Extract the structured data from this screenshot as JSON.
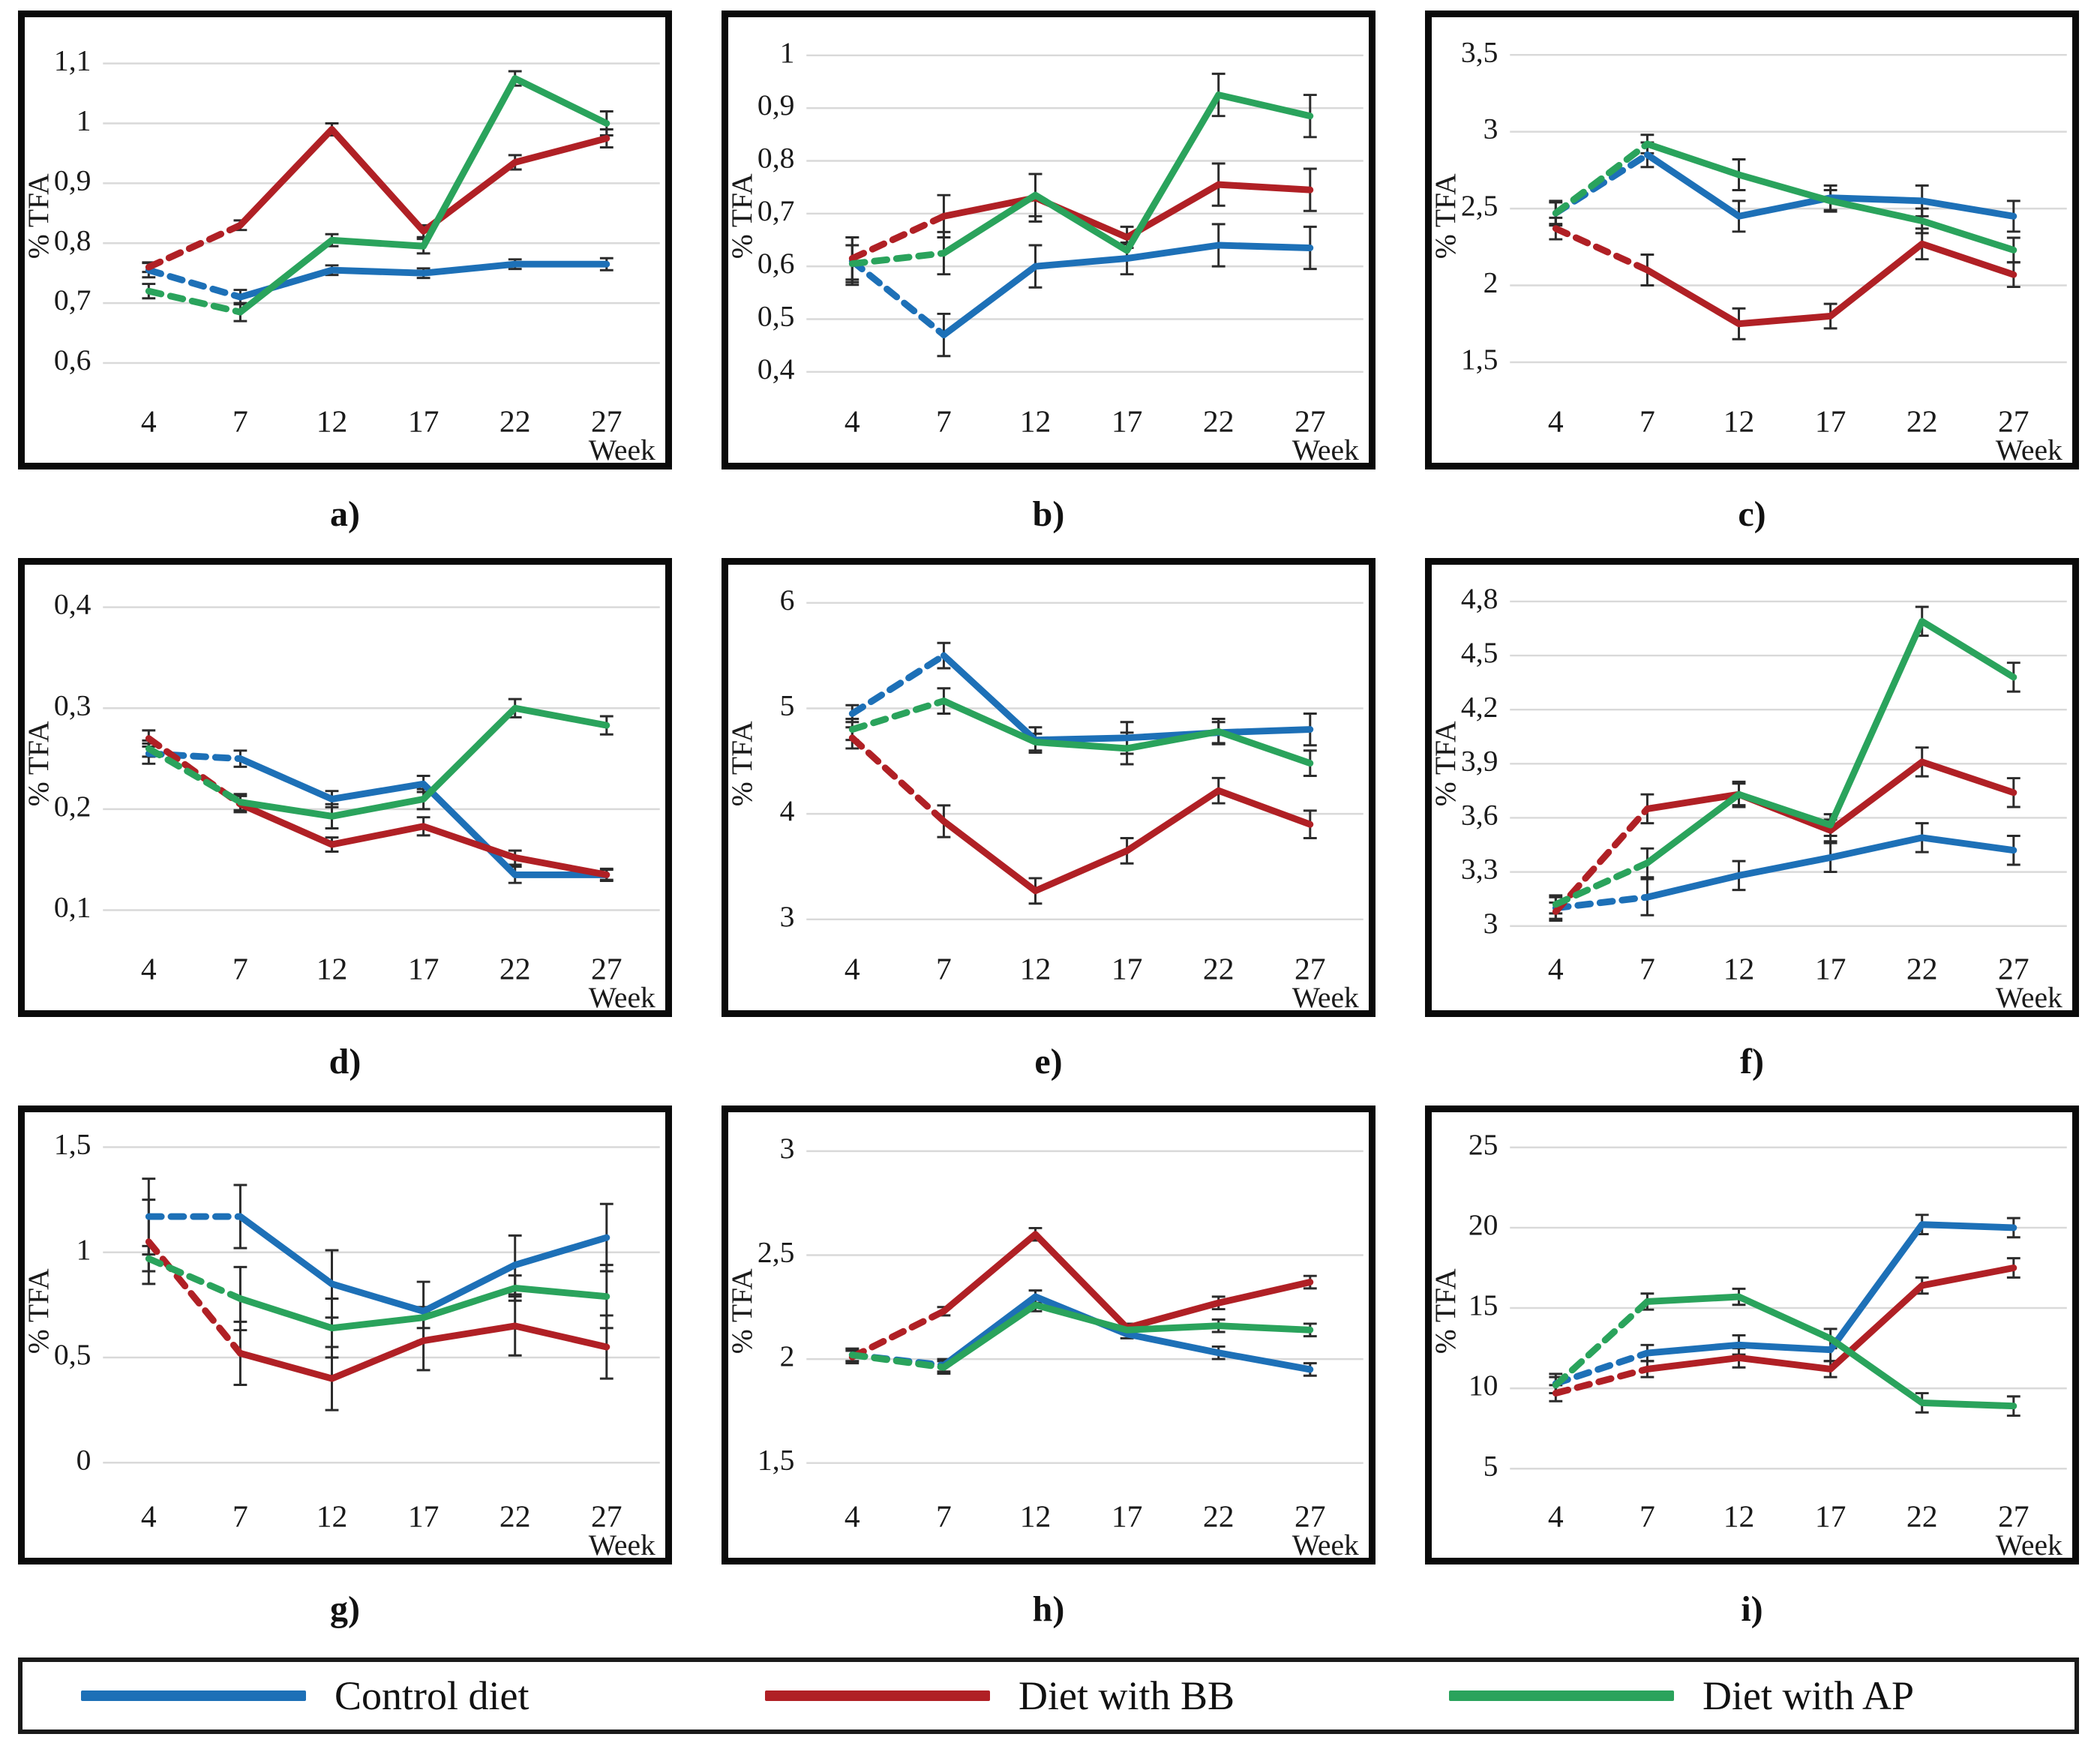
{
  "legend": {
    "items": [
      {
        "name": "control-diet",
        "label": "Control diet",
        "color": "#1d70b7"
      },
      {
        "name": "diet-with-bb",
        "label": "Diet with BB",
        "color": "#b02025"
      },
      {
        "name": "diet-with-ap",
        "label": "Diet with AP",
        "color": "#2aa35c"
      }
    ]
  },
  "colors": {
    "grid": "#d9d9d9",
    "error_bar": "#2b2b2b",
    "border": "#0a0a0a"
  },
  "axis_common": {
    "xlabel": "Week",
    "ylabel": "% TFA",
    "categories": [
      "4",
      "7",
      "12",
      "17",
      "22",
      "27"
    ]
  },
  "chart_data": [
    {
      "id": "a",
      "label": "a)",
      "type": "line",
      "x": [
        4,
        7,
        12,
        17,
        22,
        27
      ],
      "xlabel": "Week",
      "ylabel": "% TFA",
      "ylim": [
        0.55,
        1.14
      ],
      "yticks": [
        "0,6",
        "0,7",
        "0,8",
        "0,9",
        "1",
        "1,1"
      ],
      "dashed_first_segment": true,
      "series": [
        {
          "name": "Control diet",
          "color": "#1d70b7",
          "values": [
            0.755,
            0.71,
            0.755,
            0.75,
            0.765,
            0.765
          ],
          "err": [
            0.012,
            0.012,
            0.008,
            0.008,
            0.008,
            0.01
          ]
        },
        {
          "name": "Diet with BB",
          "color": "#b02025",
          "values": [
            0.76,
            0.83,
            0.99,
            0.82,
            0.935,
            0.975
          ],
          "err": [
            0.008,
            0.008,
            0.01,
            0.01,
            0.012,
            0.015
          ]
        },
        {
          "name": "Diet with AP",
          "color": "#2aa35c",
          "values": [
            0.72,
            0.685,
            0.805,
            0.795,
            1.075,
            1.0
          ],
          "err": [
            0.012,
            0.015,
            0.01,
            0.012,
            0.012,
            0.02
          ]
        }
      ]
    },
    {
      "id": "b",
      "label": "b)",
      "type": "line",
      "x": [
        4,
        7,
        12,
        17,
        22,
        27
      ],
      "xlabel": "Week",
      "ylabel": "% TFA",
      "ylim": [
        0.36,
        1.03
      ],
      "yticks": [
        "0,4",
        "0,5",
        "0,6",
        "0,7",
        "0,8",
        "0,9",
        "1"
      ],
      "dashed_first_segment": true,
      "series": [
        {
          "name": "Control diet",
          "color": "#1d70b7",
          "values": [
            0.61,
            0.47,
            0.6,
            0.615,
            0.64,
            0.635
          ],
          "err": [
            0.045,
            0.04,
            0.04,
            0.03,
            0.04,
            0.04
          ]
        },
        {
          "name": "Diet with BB",
          "color": "#b02025",
          "values": [
            0.615,
            0.695,
            0.73,
            0.655,
            0.755,
            0.745
          ],
          "err": [
            0.04,
            0.04,
            0.045,
            0.02,
            0.04,
            0.04
          ]
        },
        {
          "name": "Diet with AP",
          "color": "#2aa35c",
          "values": [
            0.605,
            0.625,
            0.735,
            0.63,
            0.925,
            0.885
          ],
          "err": [
            0.035,
            0.04,
            0.04,
            0.012,
            0.04,
            0.04
          ]
        }
      ]
    },
    {
      "id": "c",
      "label": "c)",
      "type": "line",
      "x": [
        4,
        7,
        12,
        17,
        22,
        27
      ],
      "xlabel": "Week",
      "ylabel": "% TFA",
      "ylim": [
        1.3,
        3.6
      ],
      "yticks": [
        "1,5",
        "2",
        "2,5",
        "3",
        "3,5"
      ],
      "dashed_first_segment": true,
      "series": [
        {
          "name": "Control diet",
          "color": "#1d70b7",
          "values": [
            2.47,
            2.85,
            2.45,
            2.57,
            2.55,
            2.45
          ],
          "err": [
            0.07,
            0.08,
            0.1,
            0.08,
            0.1,
            0.1
          ]
        },
        {
          "name": "Diet with BB",
          "color": "#b02025",
          "values": [
            2.37,
            2.1,
            1.75,
            1.8,
            2.27,
            2.07
          ],
          "err": [
            0.07,
            0.1,
            0.1,
            0.08,
            0.1,
            0.08
          ]
        },
        {
          "name": "Diet with AP",
          "color": "#2aa35c",
          "values": [
            2.47,
            2.92,
            2.72,
            2.55,
            2.42,
            2.23
          ],
          "err": [
            0.08,
            0.06,
            0.1,
            0.07,
            0.08,
            0.08
          ]
        }
      ]
    },
    {
      "id": "d",
      "label": "d)",
      "type": "line",
      "x": [
        4,
        7,
        12,
        17,
        22,
        27
      ],
      "xlabel": "Week",
      "ylabel": "% TFA",
      "ylim": [
        0.07,
        0.42
      ],
      "yticks": [
        "0,1",
        "0,2",
        "0,3",
        "0,4"
      ],
      "dashed_first_segment": true,
      "series": [
        {
          "name": "Control diet",
          "color": "#1d70b7",
          "values": [
            0.255,
            0.25,
            0.21,
            0.225,
            0.135,
            0.135
          ],
          "err": [
            0.01,
            0.008,
            0.008,
            0.008,
            0.008,
            0.006
          ]
        },
        {
          "name": "Diet with BB",
          "color": "#b02025",
          "values": [
            0.27,
            0.205,
            0.165,
            0.183,
            0.152,
            0.135
          ],
          "err": [
            0.008,
            0.008,
            0.007,
            0.009,
            0.007,
            0.005
          ]
        },
        {
          "name": "Diet with AP",
          "color": "#2aa35c",
          "values": [
            0.26,
            0.207,
            0.193,
            0.21,
            0.3,
            0.283
          ],
          "err": [
            0.008,
            0.008,
            0.012,
            0.01,
            0.009,
            0.009
          ]
        }
      ]
    },
    {
      "id": "e",
      "label": "e)",
      "type": "line",
      "x": [
        4,
        7,
        12,
        17,
        22,
        27
      ],
      "xlabel": "Week",
      "ylabel": "% TFA",
      "ylim": [
        2.8,
        6.15
      ],
      "yticks": [
        "3",
        "4",
        "5",
        "6"
      ],
      "dashed_first_segment": true,
      "series": [
        {
          "name": "Control diet",
          "color": "#1d70b7",
          "values": [
            4.95,
            5.5,
            4.7,
            4.72,
            4.77,
            4.8
          ],
          "err": [
            0.08,
            0.12,
            0.12,
            0.15,
            0.1,
            0.15
          ]
        },
        {
          "name": "Diet with BB",
          "color": "#b02025",
          "values": [
            4.72,
            3.93,
            3.27,
            3.65,
            4.22,
            3.9
          ],
          "err": [
            0.1,
            0.15,
            0.12,
            0.12,
            0.12,
            0.13
          ]
        },
        {
          "name": "Diet with AP",
          "color": "#2aa35c",
          "values": [
            4.8,
            5.07,
            4.68,
            4.62,
            4.78,
            4.48
          ],
          "err": [
            0.1,
            0.12,
            0.08,
            0.15,
            0.12,
            0.12
          ]
        }
      ]
    },
    {
      "id": "f",
      "label": "f)",
      "type": "line",
      "x": [
        4,
        7,
        12,
        17,
        22,
        27
      ],
      "xlabel": "Week",
      "ylabel": "% TFA",
      "ylim": [
        2.92,
        4.88
      ],
      "yticks": [
        "3",
        "3,3",
        "3,6",
        "3,9",
        "4,2",
        "4,5",
        "4,8"
      ],
      "dashed_first_segment": true,
      "series": [
        {
          "name": "Control diet",
          "color": "#1d70b7",
          "values": [
            3.1,
            3.16,
            3.28,
            3.38,
            3.49,
            3.42
          ],
          "err": [
            0.06,
            0.1,
            0.08,
            0.08,
            0.08,
            0.08
          ]
        },
        {
          "name": "Diet with BB",
          "color": "#b02025",
          "values": [
            3.08,
            3.65,
            3.73,
            3.53,
            3.91,
            3.74
          ],
          "err": [
            0.05,
            0.08,
            0.07,
            0.06,
            0.08,
            0.08
          ]
        },
        {
          "name": "Diet with AP",
          "color": "#2aa35c",
          "values": [
            3.12,
            3.35,
            3.73,
            3.56,
            4.69,
            4.38
          ],
          "err": [
            0.05,
            0.08,
            0.06,
            0.06,
            0.08,
            0.08
          ]
        }
      ]
    },
    {
      "id": "g",
      "label": "g)",
      "type": "line",
      "x": [
        4,
        7,
        12,
        17,
        22,
        27
      ],
      "xlabel": "Week",
      "ylabel": "% TFA",
      "ylim": [
        -0.12,
        1.56
      ],
      "yticks": [
        "0",
        "0,5",
        "1",
        "1,5"
      ],
      "dashed_first_segment": true,
      "series": [
        {
          "name": "Control diet",
          "color": "#1d70b7",
          "values": [
            1.17,
            1.17,
            0.85,
            0.72,
            0.94,
            1.07
          ],
          "err": [
            0.18,
            0.15,
            0.16,
            0.14,
            0.14,
            0.16
          ]
        },
        {
          "name": "Diet with BB",
          "color": "#b02025",
          "values": [
            1.05,
            0.52,
            0.4,
            0.58,
            0.65,
            0.55
          ],
          "err": [
            0.2,
            0.15,
            0.15,
            0.14,
            0.14,
            0.15
          ]
        },
        {
          "name": "Diet with AP",
          "color": "#2aa35c",
          "values": [
            0.97,
            0.78,
            0.64,
            0.69,
            0.83,
            0.79
          ],
          "err": [
            0.06,
            0.15,
            0.14,
            0.05,
            0.06,
            0.15
          ]
        }
      ]
    },
    {
      "id": "h",
      "label": "h)",
      "type": "line",
      "x": [
        4,
        7,
        12,
        17,
        22,
        27
      ],
      "xlabel": "Week",
      "ylabel": "% TFA",
      "ylim": [
        1.38,
        3.08
      ],
      "yticks": [
        "1,5",
        "2",
        "2,5",
        "3"
      ],
      "dashed_first_segment": true,
      "series": [
        {
          "name": "Control diet",
          "color": "#1d70b7",
          "values": [
            2.02,
            1.97,
            2.3,
            2.12,
            2.03,
            1.95
          ],
          "err": [
            0.03,
            0.03,
            0.03,
            0.02,
            0.03,
            0.03
          ]
        },
        {
          "name": "Diet with BB",
          "color": "#b02025",
          "values": [
            2.01,
            2.23,
            2.6,
            2.15,
            2.27,
            2.37
          ],
          "err": [
            0.03,
            0.02,
            0.03,
            0.02,
            0.03,
            0.03
          ]
        },
        {
          "name": "Diet with AP",
          "color": "#2aa35c",
          "values": [
            2.02,
            1.96,
            2.26,
            2.14,
            2.16,
            2.14
          ],
          "err": [
            0.03,
            0.03,
            0.03,
            0.02,
            0.03,
            0.03
          ]
        }
      ]
    },
    {
      "id": "i",
      "label": "i)",
      "type": "line",
      "x": [
        4,
        7,
        12,
        17,
        22,
        27
      ],
      "xlabel": "Week",
      "ylabel": "% TFA",
      "ylim": [
        3.8,
        25.8
      ],
      "yticks": [
        "5",
        "10",
        "15",
        "20",
        "25"
      ],
      "dashed_first_segment": true,
      "series": [
        {
          "name": "Control diet",
          "color": "#1d70b7",
          "values": [
            10.3,
            12.2,
            12.7,
            12.4,
            20.2,
            20.0
          ],
          "err": [
            0.6,
            0.5,
            0.6,
            0.7,
            0.6,
            0.6
          ]
        },
        {
          "name": "Diet with BB",
          "color": "#b02025",
          "values": [
            9.7,
            11.2,
            11.9,
            11.2,
            16.4,
            17.5
          ],
          "err": [
            0.5,
            0.5,
            0.6,
            0.5,
            0.5,
            0.6
          ]
        },
        {
          "name": "Diet with AP",
          "color": "#2aa35c",
          "values": [
            10.2,
            15.4,
            15.7,
            13.1,
            9.1,
            8.9
          ],
          "err": [
            0.5,
            0.5,
            0.5,
            0.6,
            0.6,
            0.6
          ]
        }
      ]
    }
  ]
}
